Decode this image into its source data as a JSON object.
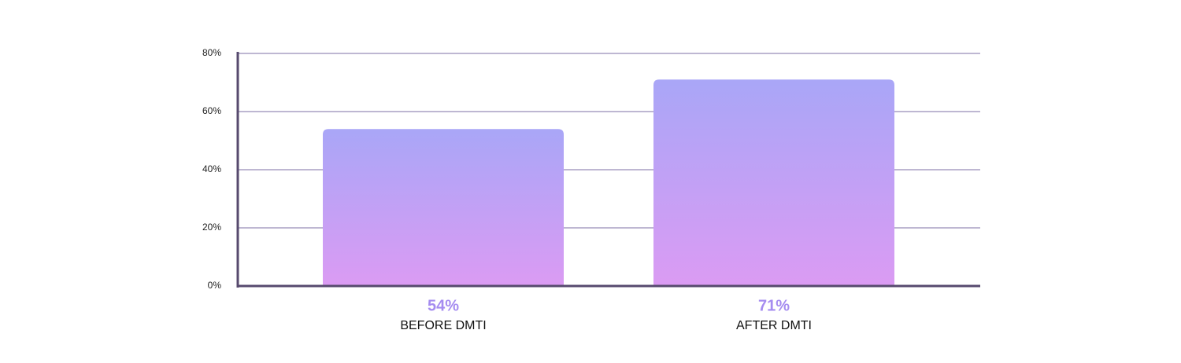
{
  "chart_data": {
    "type": "bar",
    "categories": [
      "BEFORE DMTI",
      "AFTER DMTI"
    ],
    "values": [
      54,
      71
    ],
    "value_labels": [
      "54%",
      "71%"
    ],
    "gradient": [
      "#a9a6f7",
      "#db9bf3"
    ],
    "value_label_color": "#a58cf0",
    "ylim": [
      0,
      80
    ],
    "yticks": [
      {
        "value": 0,
        "label": "0%"
      },
      {
        "value": 20,
        "label": "20%"
      },
      {
        "value": 40,
        "label": "40%"
      },
      {
        "value": 60,
        "label": "60%"
      },
      {
        "value": 80,
        "label": "80%"
      }
    ],
    "grid": true
  }
}
